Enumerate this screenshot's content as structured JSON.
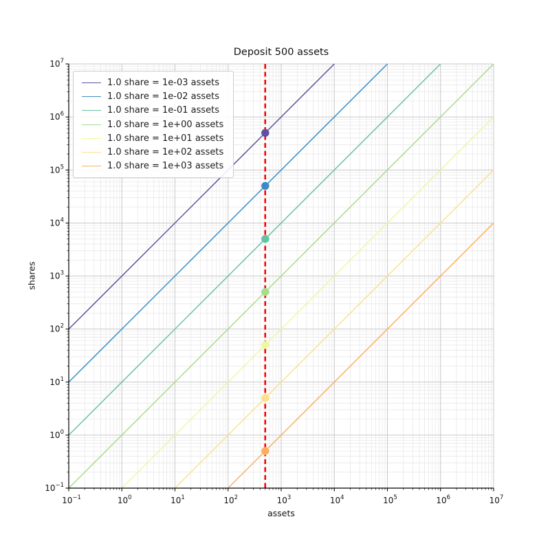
{
  "chart_data": {
    "type": "line",
    "title": "Deposit 500 assets",
    "xlabel": "assets",
    "ylabel": "shares",
    "x_scale": "log",
    "y_scale": "log",
    "x_range": [
      0.1,
      10000000
    ],
    "y_range": [
      0.1,
      10000000
    ],
    "x_tick_exponents": [
      -1,
      0,
      1,
      2,
      3,
      4,
      5,
      6,
      7
    ],
    "y_tick_exponents": [
      -1,
      0,
      1,
      2,
      3,
      4,
      5,
      6,
      7
    ],
    "grid": {
      "visible": true,
      "which": "both",
      "major_color": "#c6c6c6",
      "minor_color": "#e8e8e8"
    },
    "legend_position": "upper left",
    "series": [
      {
        "label": "1.0 share = 1e-03 assets",
        "assets_per_share": 0.001,
        "shares_per_asset": 1000,
        "color": "#5e4fa2",
        "marker": {
          "x": 500,
          "y": 500000
        }
      },
      {
        "label": "1.0 share = 1e-02 assets",
        "assets_per_share": 0.01,
        "shares_per_asset": 100,
        "color": "#3b8bc2",
        "marker": {
          "x": 500,
          "y": 50000
        }
      },
      {
        "label": "1.0 share = 1e-01 assets",
        "assets_per_share": 0.1,
        "shares_per_asset": 10,
        "color": "#66c2a5",
        "marker": {
          "x": 500,
          "y": 5000
        }
      },
      {
        "label": "1.0 share = 1e+00 assets",
        "assets_per_share": 1,
        "shares_per_asset": 1,
        "color": "#a6dc8e",
        "marker": {
          "x": 500,
          "y": 500
        }
      },
      {
        "label": "1.0 share = 1e+01 assets",
        "assets_per_share": 10,
        "shares_per_asset": 0.1,
        "color": "#eff8a0",
        "marker": {
          "x": 500,
          "y": 50
        }
      },
      {
        "label": "1.0 share = 1e+02 assets",
        "assets_per_share": 100,
        "shares_per_asset": 0.01,
        "color": "#fee08b",
        "marker": {
          "x": 500,
          "y": 5
        }
      },
      {
        "label": "1.0 share = 1e+03 assets",
        "assets_per_share": 1000,
        "shares_per_asset": 0.001,
        "color": "#fdae61",
        "marker": {
          "x": 500,
          "y": 0.5
        }
      }
    ],
    "vline": {
      "x": 500,
      "color": "#fd0000",
      "style": "dashed",
      "width": 2.6
    }
  }
}
